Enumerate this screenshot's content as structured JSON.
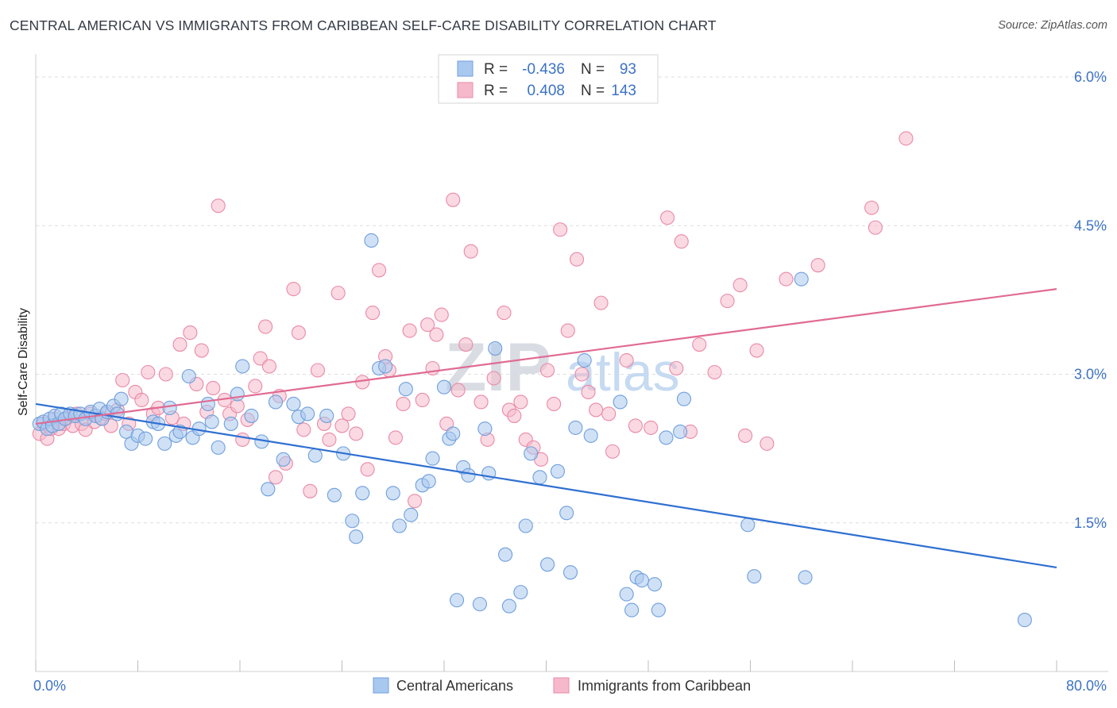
{
  "title": "CENTRAL AMERICAN VS IMMIGRANTS FROM CARIBBEAN SELF-CARE DISABILITY CORRELATION CHART",
  "source": "Source: ZipAtlas.com",
  "watermark": {
    "zip": "ZIP",
    "atlas": "atlas"
  },
  "legend": {
    "r_label": "R =",
    "n_label": "N =",
    "rows": [
      {
        "r": "-0.436",
        "n": "93"
      },
      {
        "r": "0.408",
        "n": "143"
      }
    ]
  },
  "bottom_legend": [
    "Central Americans",
    "Immigrants from Caribbean"
  ],
  "colors": {
    "blue_fill": "#a9c8ef",
    "blue_stroke": "#6f9fdc",
    "blue_line": "#2f6fd1",
    "pink_fill": "#f5b9cb",
    "pink_stroke": "#e98aa7",
    "pink_line": "#e06b93",
    "tick_text": "#3c72c4",
    "grid": "#dddddd"
  },
  "chart_data": {
    "type": "scatter",
    "title": "CENTRAL AMERICAN VS IMMIGRANTS FROM CARIBBEAN SELF-CARE DISABILITY CORRELATION CHART",
    "xlabel": "",
    "ylabel": "Self-Care Disability",
    "xlim": [
      0,
      80
    ],
    "ylim": [
      0,
      6.2
    ],
    "x_tick_labels": [
      "0.0%",
      "80.0%"
    ],
    "y_ticks": [
      1.5,
      3.0,
      4.5,
      6.0
    ],
    "y_tick_labels": [
      "1.5%",
      "3.0%",
      "4.5%",
      "6.0%"
    ],
    "grid": "horizontal dashed",
    "legend_position": "top-center",
    "series": [
      {
        "name": "Central Americans",
        "R": -0.436,
        "N": 93,
        "trend": [
          [
            0,
            2.7
          ],
          [
            80,
            1.05
          ]
        ],
        "points": [
          [
            0.3,
            2.5
          ],
          [
            0.6,
            2.52
          ],
          [
            0.9,
            2.45
          ],
          [
            1.1,
            2.55
          ],
          [
            1.3,
            2.48
          ],
          [
            1.5,
            2.58
          ],
          [
            1.8,
            2.5
          ],
          [
            2.0,
            2.6
          ],
          [
            2.3,
            2.55
          ],
          [
            2.7,
            2.6
          ],
          [
            3.1,
            2.58
          ],
          [
            3.5,
            2.6
          ],
          [
            3.9,
            2.55
          ],
          [
            4.3,
            2.62
          ],
          [
            4.7,
            2.58
          ],
          [
            5.0,
            2.65
          ],
          [
            5.2,
            2.55
          ],
          [
            5.6,
            2.62
          ],
          [
            6.1,
            2.68
          ],
          [
            6.4,
            2.6
          ],
          [
            6.7,
            2.75
          ],
          [
            7.1,
            2.42
          ],
          [
            7.5,
            2.3
          ],
          [
            8.0,
            2.38
          ],
          [
            8.6,
            2.35
          ],
          [
            9.2,
            2.52
          ],
          [
            9.6,
            2.5
          ],
          [
            10.1,
            2.3
          ],
          [
            10.5,
            2.66
          ],
          [
            11.0,
            2.38
          ],
          [
            11.3,
            2.42
          ],
          [
            12.0,
            2.98
          ],
          [
            12.3,
            2.36
          ],
          [
            12.8,
            2.45
          ],
          [
            13.5,
            2.7
          ],
          [
            13.8,
            2.52
          ],
          [
            14.3,
            2.26
          ],
          [
            15.3,
            2.5
          ],
          [
            15.8,
            2.8
          ],
          [
            16.2,
            3.08
          ],
          [
            16.9,
            2.58
          ],
          [
            17.7,
            2.32
          ],
          [
            18.2,
            1.84
          ],
          [
            18.8,
            2.72
          ],
          [
            19.4,
            2.14
          ],
          [
            20.2,
            2.7
          ],
          [
            20.6,
            2.57
          ],
          [
            21.3,
            2.6
          ],
          [
            21.9,
            2.18
          ],
          [
            22.8,
            2.58
          ],
          [
            23.4,
            1.78
          ],
          [
            24.1,
            2.2
          ],
          [
            24.8,
            1.52
          ],
          [
            25.1,
            1.36
          ],
          [
            25.6,
            1.8
          ],
          [
            26.3,
            4.35
          ],
          [
            26.9,
            3.06
          ],
          [
            27.4,
            3.08
          ],
          [
            28.0,
            1.8
          ],
          [
            28.5,
            1.47
          ],
          [
            29.0,
            2.85
          ],
          [
            29.4,
            1.58
          ],
          [
            30.3,
            1.88
          ],
          [
            30.8,
            1.92
          ],
          [
            31.1,
            2.15
          ],
          [
            32.0,
            2.87
          ],
          [
            32.4,
            2.35
          ],
          [
            32.7,
            2.4
          ],
          [
            33.0,
            0.72
          ],
          [
            33.5,
            2.06
          ],
          [
            33.9,
            1.98
          ],
          [
            34.8,
            0.68
          ],
          [
            35.2,
            2.45
          ],
          [
            35.5,
            2.0
          ],
          [
            36.0,
            3.26
          ],
          [
            36.8,
            1.18
          ],
          [
            37.1,
            0.66
          ],
          [
            38.0,
            0.8
          ],
          [
            38.4,
            1.47
          ],
          [
            38.8,
            2.2
          ],
          [
            39.5,
            1.96
          ],
          [
            40.1,
            1.08
          ],
          [
            40.9,
            2.02
          ],
          [
            41.6,
            1.6
          ],
          [
            41.9,
            1.0
          ],
          [
            42.3,
            2.46
          ],
          [
            43.0,
            3.14
          ],
          [
            43.5,
            2.38
          ],
          [
            45.8,
            2.72
          ],
          [
            46.3,
            0.78
          ],
          [
            46.7,
            0.62
          ],
          [
            47.1,
            0.95
          ],
          [
            47.5,
            0.92
          ],
          [
            48.5,
            0.88
          ],
          [
            48.8,
            0.62
          ],
          [
            49.4,
            2.36
          ],
          [
            50.5,
            2.42
          ],
          [
            50.8,
            2.75
          ],
          [
            55.8,
            1.48
          ],
          [
            56.3,
            0.96
          ],
          [
            60.0,
            3.96
          ],
          [
            60.3,
            0.95
          ],
          [
            77.5,
            0.52
          ]
        ]
      },
      {
        "name": "Immigrants from Caribbean",
        "R": 0.408,
        "N": 143,
        "trend": [
          [
            0,
            2.5
          ],
          [
            80,
            3.86
          ]
        ],
        "points": [
          [
            0.3,
            2.4
          ],
          [
            0.6,
            2.5
          ],
          [
            0.9,
            2.35
          ],
          [
            1.2,
            2.45
          ],
          [
            1.5,
            2.55
          ],
          [
            1.8,
            2.45
          ],
          [
            2.2,
            2.5
          ],
          [
            2.5,
            2.56
          ],
          [
            2.9,
            2.48
          ],
          [
            3.2,
            2.6
          ],
          [
            3.6,
            2.5
          ],
          [
            3.9,
            2.44
          ],
          [
            4.3,
            2.6
          ],
          [
            4.6,
            2.52
          ],
          [
            5.1,
            2.56
          ],
          [
            5.5,
            2.6
          ],
          [
            5.9,
            2.48
          ],
          [
            6.4,
            2.64
          ],
          [
            6.8,
            2.94
          ],
          [
            7.3,
            2.5
          ],
          [
            7.8,
            2.82
          ],
          [
            8.3,
            2.74
          ],
          [
            8.8,
            3.02
          ],
          [
            9.2,
            2.6
          ],
          [
            9.6,
            2.66
          ],
          [
            10.2,
            3.0
          ],
          [
            10.7,
            2.56
          ],
          [
            11.3,
            3.3
          ],
          [
            11.6,
            2.5
          ],
          [
            12.1,
            3.42
          ],
          [
            12.6,
            2.9
          ],
          [
            13.0,
            3.24
          ],
          [
            13.4,
            2.62
          ],
          [
            13.9,
            2.86
          ],
          [
            14.3,
            4.7
          ],
          [
            14.8,
            2.74
          ],
          [
            15.2,
            2.6
          ],
          [
            15.8,
            2.68
          ],
          [
            16.2,
            2.34
          ],
          [
            16.6,
            2.54
          ],
          [
            17.2,
            2.88
          ],
          [
            17.6,
            3.16
          ],
          [
            18.0,
            3.48
          ],
          [
            18.3,
            3.08
          ],
          [
            18.8,
            1.96
          ],
          [
            19.1,
            2.78
          ],
          [
            19.6,
            2.1
          ],
          [
            20.2,
            3.86
          ],
          [
            20.6,
            3.42
          ],
          [
            21.0,
            2.44
          ],
          [
            21.5,
            1.82
          ],
          [
            22.1,
            3.04
          ],
          [
            22.6,
            2.5
          ],
          [
            23.0,
            2.34
          ],
          [
            23.7,
            3.82
          ],
          [
            24.0,
            2.48
          ],
          [
            24.5,
            2.6
          ],
          [
            25.1,
            2.4
          ],
          [
            25.6,
            2.92
          ],
          [
            26.0,
            2.04
          ],
          [
            26.4,
            3.62
          ],
          [
            26.9,
            4.05
          ],
          [
            27.4,
            3.18
          ],
          [
            27.7,
            3.04
          ],
          [
            28.2,
            2.36
          ],
          [
            28.8,
            2.7
          ],
          [
            29.3,
            3.44
          ],
          [
            29.7,
            1.72
          ],
          [
            30.3,
            2.74
          ],
          [
            30.7,
            3.5
          ],
          [
            31.1,
            3.06
          ],
          [
            31.4,
            3.4
          ],
          [
            31.8,
            3.6
          ],
          [
            32.2,
            2.5
          ],
          [
            32.7,
            4.76
          ],
          [
            33.1,
            2.84
          ],
          [
            33.7,
            3.3
          ],
          [
            34.1,
            4.24
          ],
          [
            34.9,
            2.72
          ],
          [
            35.4,
            2.34
          ],
          [
            35.9,
            2.96
          ],
          [
            36.7,
            3.62
          ],
          [
            37.1,
            2.64
          ],
          [
            37.5,
            2.58
          ],
          [
            38.0,
            2.72
          ],
          [
            38.4,
            2.34
          ],
          [
            39.0,
            2.26
          ],
          [
            39.6,
            2.14
          ],
          [
            40.1,
            3.04
          ],
          [
            40.6,
            2.7
          ],
          [
            41.1,
            4.46
          ],
          [
            41.7,
            3.44
          ],
          [
            42.4,
            4.16
          ],
          [
            42.8,
            3.0
          ],
          [
            43.3,
            2.82
          ],
          [
            43.9,
            2.64
          ],
          [
            44.3,
            3.72
          ],
          [
            44.9,
            2.6
          ],
          [
            45.2,
            2.22
          ],
          [
            46.3,
            3.14
          ],
          [
            47.0,
            2.48
          ],
          [
            48.2,
            2.46
          ],
          [
            49.5,
            4.58
          ],
          [
            50.2,
            3.06
          ],
          [
            50.6,
            4.34
          ],
          [
            51.3,
            2.42
          ],
          [
            52.0,
            3.3
          ],
          [
            53.2,
            3.02
          ],
          [
            54.2,
            3.74
          ],
          [
            55.2,
            3.9
          ],
          [
            55.6,
            2.38
          ],
          [
            56.5,
            3.24
          ],
          [
            57.3,
            2.3
          ],
          [
            58.8,
            3.96
          ],
          [
            61.3,
            4.1
          ],
          [
            65.5,
            4.68
          ],
          [
            65.8,
            4.48
          ],
          [
            68.2,
            5.38
          ]
        ]
      }
    ]
  }
}
